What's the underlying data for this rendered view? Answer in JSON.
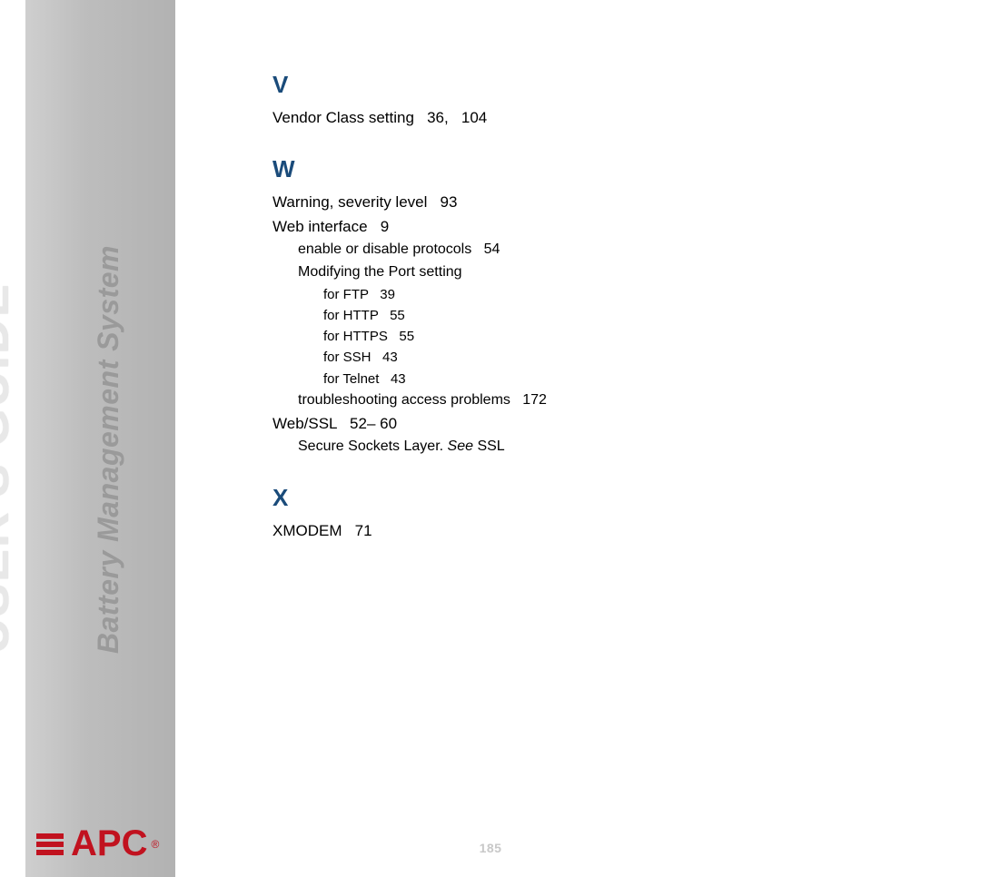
{
  "sidebar": {
    "title_main": "USER'S GUIDE",
    "title_sub": "Battery Management System",
    "logo_letters": "APC",
    "logo_reg": "®"
  },
  "sections": {
    "V": {
      "letter": "V",
      "items": [
        {
          "label": "Vendor Class setting",
          "pages": "   36,   104",
          "level": "main"
        }
      ]
    },
    "W": {
      "letter": "W",
      "items": [
        {
          "label": "Warning, severity level",
          "pages": "   93",
          "level": "main"
        },
        {
          "label": "Web interface",
          "pages": "   9",
          "level": "main"
        },
        {
          "label": "enable or disable protocols",
          "pages": "   54",
          "level": "sub1"
        },
        {
          "label": "Modifying the Port setting",
          "pages": "",
          "level": "sub1"
        },
        {
          "label": "for FTP",
          "pages": "   39",
          "level": "sub2"
        },
        {
          "label": "for HTTP",
          "pages": "   55",
          "level": "sub2"
        },
        {
          "label": "for HTTPS",
          "pages": "   55",
          "level": "sub2"
        },
        {
          "label": "for SSH",
          "pages": "   43",
          "level": "sub2"
        },
        {
          "label": "for Telnet",
          "pages": "   43",
          "level": "sub2"
        },
        {
          "label": "troubleshooting access problems",
          "pages": "   172",
          "level": "sub1"
        },
        {
          "label": "Web/SSL",
          "pages": "   52– 60",
          "level": "main"
        },
        {
          "label_plain": "Secure Sockets Layer. ",
          "label_see": "See",
          "label_post": " SSL",
          "level": "sub1",
          "is_see": true
        }
      ]
    },
    "X": {
      "letter": "X",
      "items": [
        {
          "label": "XMODEM",
          "pages": "   71",
          "level": "main"
        }
      ]
    }
  },
  "page_number": "185",
  "colors": {
    "heading": "#1a4b7a",
    "text": "#000000",
    "page_num": "#c8c8c8",
    "logo_red": "#c1121f",
    "sidebar_gradient_from": "#cfcfcf",
    "sidebar_gradient_to": "#b2b2b2",
    "vt_main": "#e8e8e8",
    "vt_sub": "#9a9a9a"
  },
  "typography": {
    "section_letter_pt": 26,
    "entry_main_pt": 17,
    "entry_sub1_pt": 16,
    "entry_sub2_pt": 15,
    "vt_main_pt": 54,
    "vt_sub_pt": 32,
    "logo_pt": 40
  }
}
